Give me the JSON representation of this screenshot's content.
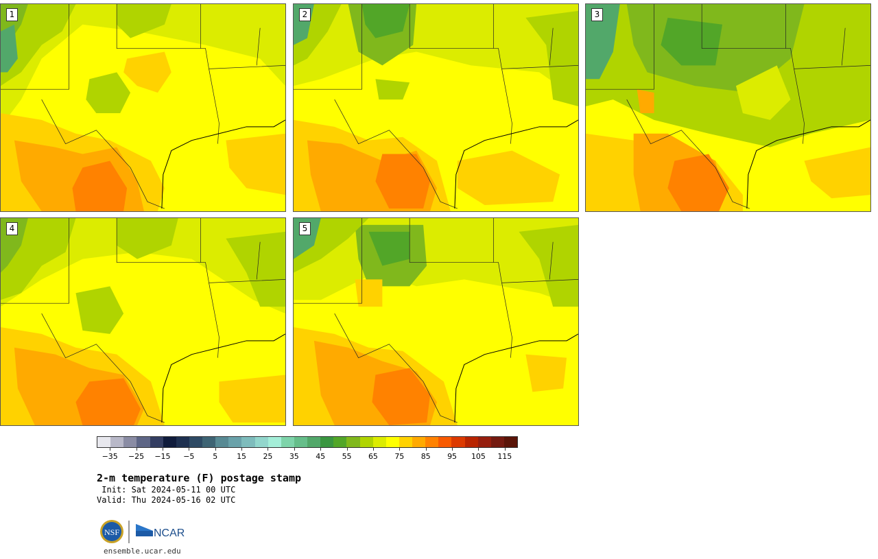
{
  "panels": [
    {
      "label": "1"
    },
    {
      "label": "2"
    },
    {
      "label": "3"
    },
    {
      "label": "4"
    },
    {
      "label": "5"
    }
  ],
  "colorbar": {
    "colors": [
      "#e8e8ee",
      "#b8b8c8",
      "#8a8ca4",
      "#5e6686",
      "#343e62",
      "#101c3c",
      "#1e3050",
      "#2e4a64",
      "#3e6474",
      "#588a94",
      "#6aa2aa",
      "#7ebcbc",
      "#92d6cc",
      "#a4eed8",
      "#7ed4aa",
      "#66be8a",
      "#52a86a",
      "#3a9640",
      "#52a628",
      "#80b81c",
      "#b0d400",
      "#dcec00",
      "#ffff00",
      "#ffd200",
      "#ffaa00",
      "#ff8200",
      "#f85a00",
      "#dc3a00",
      "#b82400",
      "#961e0e",
      "#741a10",
      "#5a1408"
    ],
    "tick_labels": [
      "−35",
      "−25",
      "−15",
      "−5",
      "5",
      "15",
      "25",
      "35",
      "45",
      "55",
      "65",
      "75",
      "85",
      "95",
      "105",
      "115"
    ],
    "range": [
      -40,
      120
    ]
  },
  "title": "2-m temperature (F) postage stamp",
  "init": " Init: Sat 2024-05-11 00 UTC",
  "valid": "Valid: Thu 2024-05-16 02 UTC",
  "logo": {
    "nsf_text": "NSF",
    "ncar_text": "NCAR"
  },
  "url": "ensemble.ucar.edu"
}
